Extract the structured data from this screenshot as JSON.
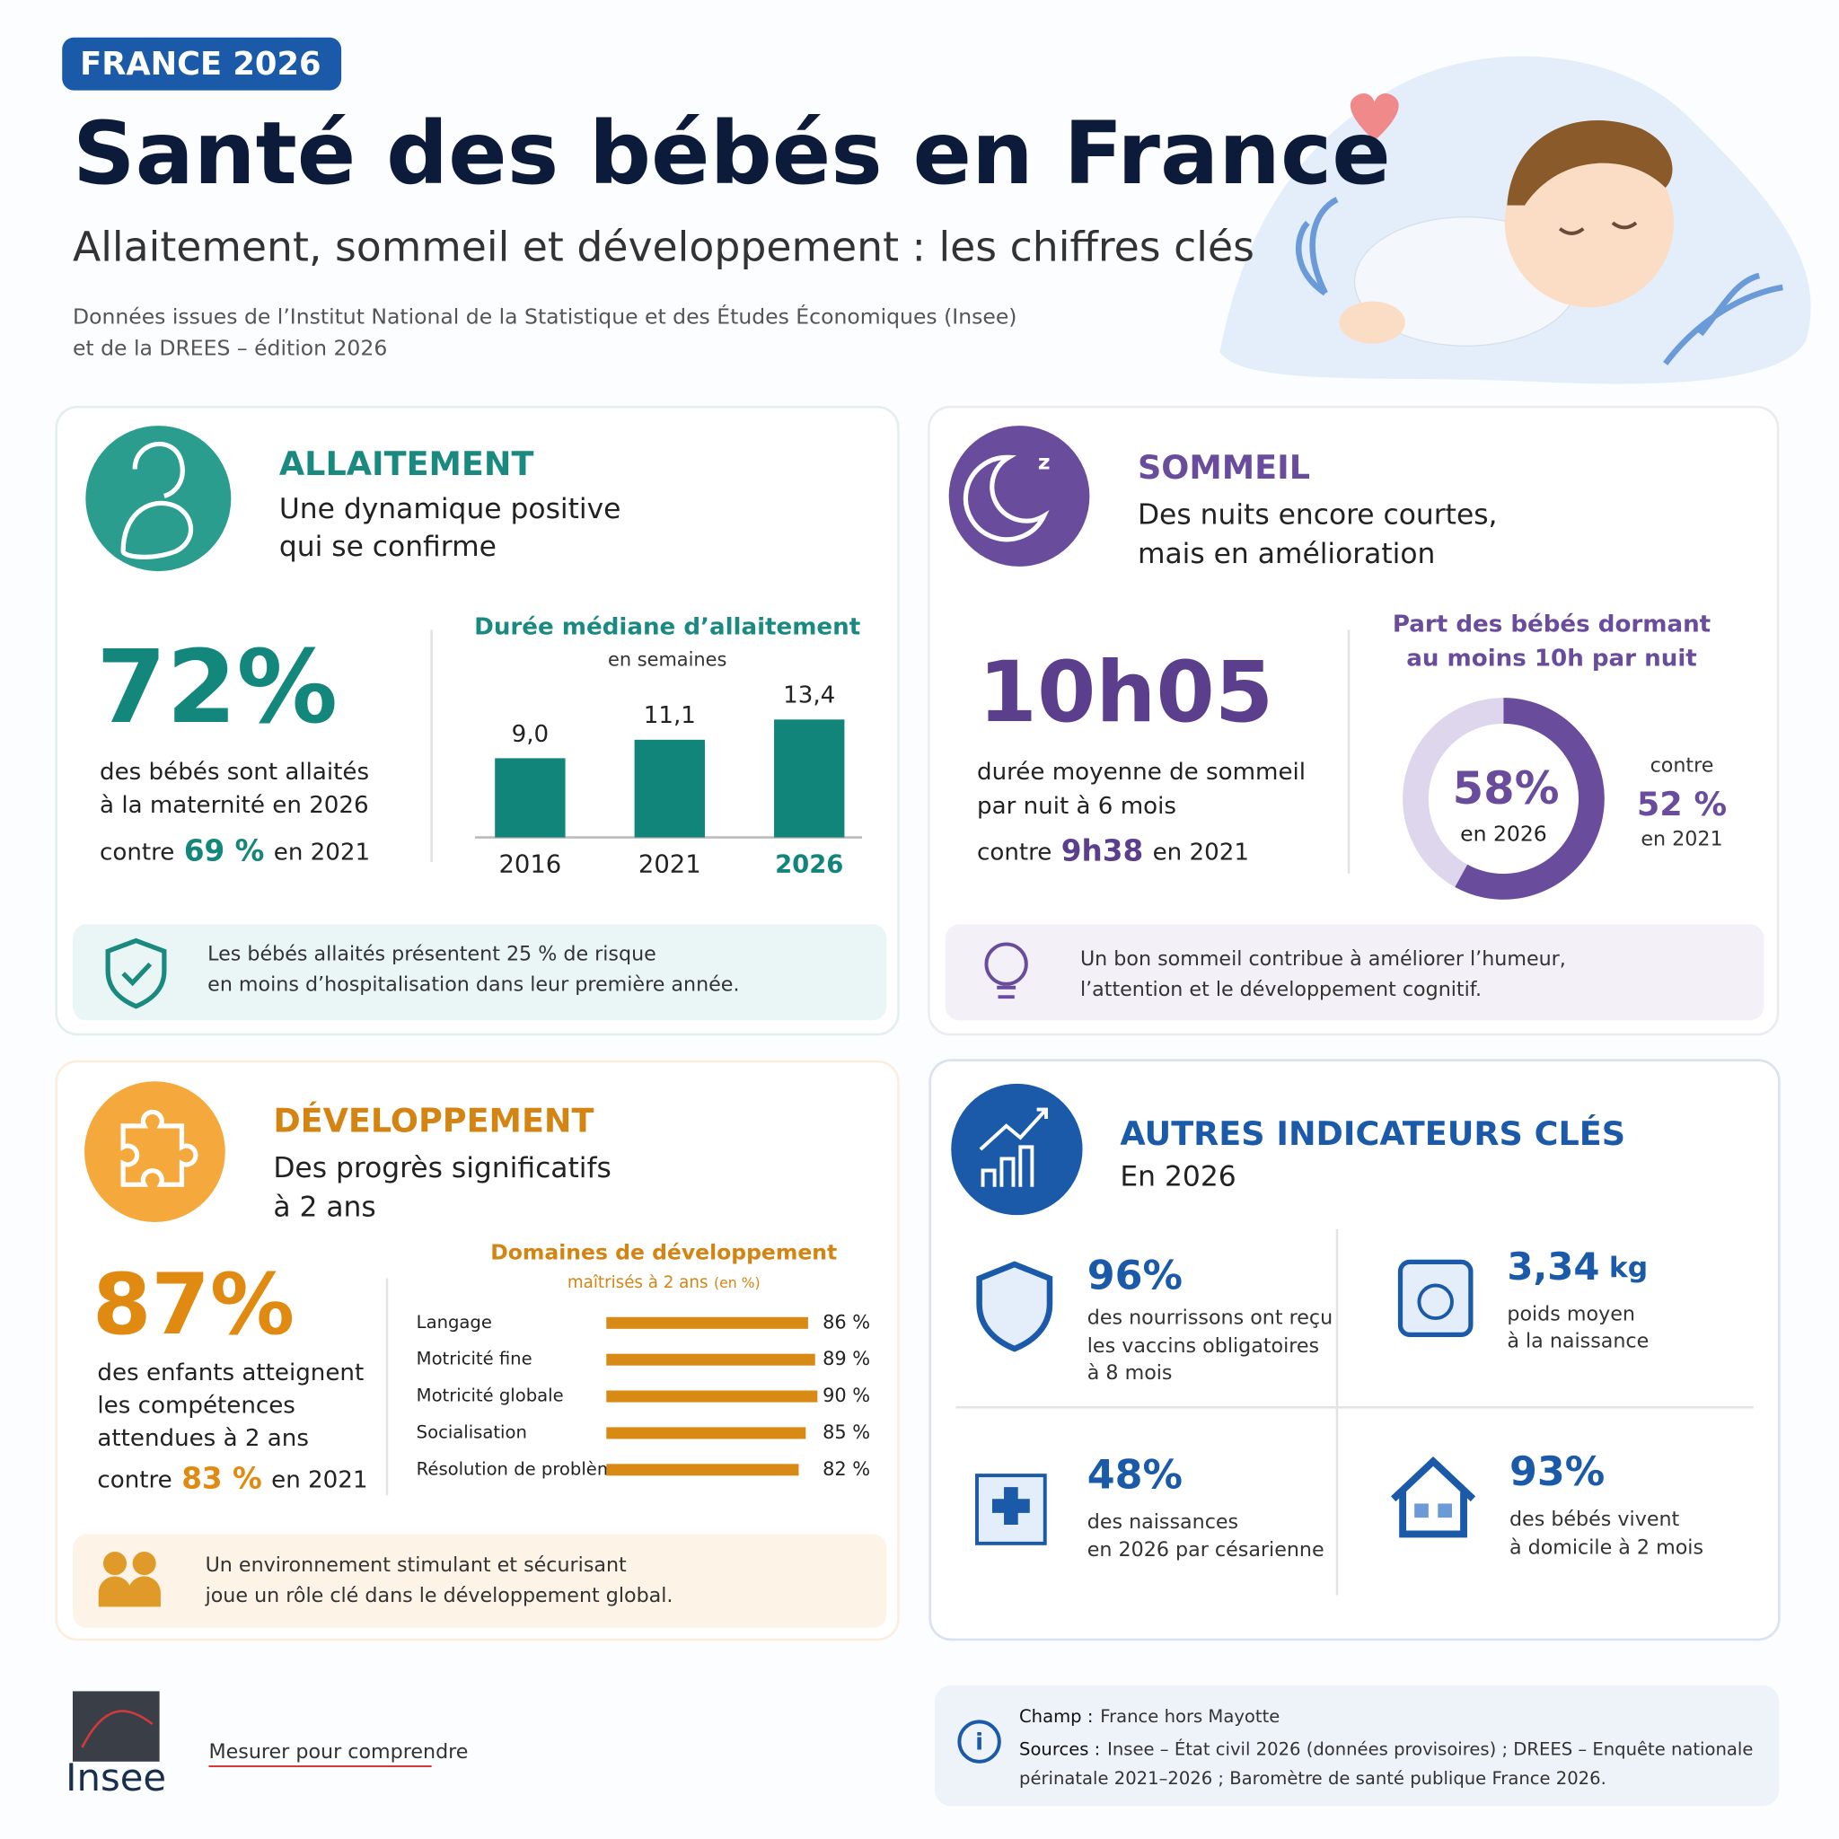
{
  "header": {
    "badge": "FRANCE 2026",
    "title": "Santé des bébés en France",
    "subtitle": "Allaitement, sommeil et développement : les chiffres clés",
    "source_lines": [
      "Données issues de l’Institut National de la Statistique et des Études Économiques (Insee)",
      "et de la DREES – édition 2026"
    ]
  },
  "allaitement": {
    "heading": "ALLAITEMENT",
    "tagline": [
      "Une dynamique positive",
      "qui se confirme"
    ],
    "stat": "72%",
    "stat_text": [
      "des bébés sont allaités",
      "à la maternité en 2026"
    ],
    "compare": [
      "contre",
      "69 %",
      "en 2021"
    ],
    "note": [
      "Les bébés allaités présentent 25 % de risque",
      "en moins d’hospitalisation dans leur première année."
    ]
  },
  "sommeil": {
    "heading": "SOMMEIL",
    "tagline": [
      "Des nuits encore courtes,",
      "mais en amélioration"
    ],
    "stat": "10h05",
    "stat_text": [
      "durée moyenne de sommeil",
      "par nuit à 6 mois"
    ],
    "compare": [
      "contre",
      "9h38",
      "en 2021"
    ],
    "donut_compare": [
      "contre",
      "52 %",
      "en 2021"
    ],
    "note": [
      "Un bon sommeil contribue à améliorer l’humeur,",
      "l’attention et le développement cognitif."
    ]
  },
  "developpement": {
    "heading": "DÉVELOPPEMENT",
    "tagline": [
      "Des progrès significatifs",
      "à 2 ans"
    ],
    "stat": "87%",
    "stat_text": [
      "des enfants atteignent",
      "les compétences",
      "attendues à 2 ans"
    ],
    "compare": [
      "contre",
      "83 %",
      "en 2021"
    ],
    "note": [
      "Un environnement stimulant et sécurisant",
      "joue un rôle clé dans le développement global."
    ]
  },
  "autres": {
    "heading": "AUTRES INDICATEURS CLÉS",
    "tagline": "En 2026",
    "items": [
      {
        "value": "96%",
        "text": [
          "des nourrissons ont reçu",
          "les vaccins obligatoires",
          "à 8 mois"
        ]
      },
      {
        "value": "3,34",
        "unit": "kg",
        "text": [
          "poids moyen",
          "à la naissance"
        ]
      },
      {
        "value": "48%",
        "text": [
          "des naissances",
          "en 2026 par césarienne"
        ]
      },
      {
        "value": "93%",
        "text": [
          "des bébés vivent",
          "à domicile à 2 mois"
        ]
      }
    ]
  },
  "footer": {
    "logo": "Insee",
    "tagline": "Mesurer pour comprendre",
    "champ_label": "Champ :",
    "champ": "France hors Mayotte",
    "sources_label": "Sources :",
    "sources": [
      "Insee – État civil 2026 (données provisoires) ; DREES – Enquête nationale",
      "périnatale 2021–2026 ; Baromètre de santé publique France 2026."
    ]
  },
  "chart_data": [
    {
      "type": "bar",
      "title": "Durée médiane d’allaitement",
      "subtitle": "en semaines",
      "categories": [
        "2016",
        "2021",
        "2026"
      ],
      "values": [
        9.0,
        11.1,
        13.4
      ],
      "value_labels": [
        "9,0",
        "11,1",
        "13,4"
      ],
      "color": "#12857b"
    },
    {
      "type": "donut",
      "title": [
        "Part des bébés dormant",
        "au moins 10h par nuit"
      ],
      "categories": [
        "en 2026"
      ],
      "values": [
        58
      ],
      "value_labels": [
        "58%"
      ],
      "color": "#6a4c9c"
    },
    {
      "type": "hbar",
      "title": "Domaines de développement",
      "subtitle": "maîtrisés à 2 ans",
      "unit_note": "(en %)",
      "categories": [
        "Langage",
        "Motricité fine",
        "Motricité globale",
        "Socialisation",
        "Résolution de problèmes"
      ],
      "values": [
        86,
        89,
        90,
        85,
        82
      ],
      "value_labels": [
        "86 %",
        "89 %",
        "90 %",
        "85 %",
        "82 %"
      ],
      "color": "#d98a14"
    }
  ]
}
